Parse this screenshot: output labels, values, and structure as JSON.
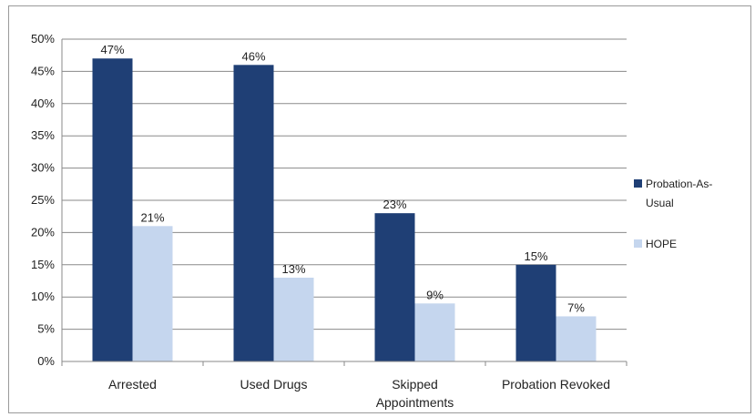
{
  "chart_data": {
    "type": "bar",
    "title": "",
    "xlabel": "",
    "ylabel": "",
    "categories": [
      "Arrested",
      "Used Drugs",
      "Skipped Appointments",
      "Probation Revoked"
    ],
    "category_lines": [
      [
        "Arrested"
      ],
      [
        "Used Drugs"
      ],
      [
        "Skipped",
        "Appointments"
      ],
      [
        "Probation Revoked"
      ]
    ],
    "series": [
      {
        "name": "Probation-As-Usual",
        "name_lines": [
          "Probation-As-",
          "Usual"
        ],
        "values": [
          47,
          46,
          23,
          15
        ],
        "labels": [
          "47%",
          "46%",
          "23%",
          "15%"
        ],
        "color": "#1f3f75"
      },
      {
        "name": "HOPE",
        "name_lines": [
          "HOPE"
        ],
        "values": [
          21,
          13,
          9,
          7
        ],
        "labels": [
          "21%",
          "13%",
          "9%",
          "7%"
        ],
        "color": "#c5d6ee"
      }
    ],
    "ylim": [
      0,
      50
    ],
    "yticks": [
      0,
      5,
      10,
      15,
      20,
      25,
      30,
      35,
      40,
      45,
      50
    ],
    "ytick_labels": [
      "0%",
      "5%",
      "10%",
      "15%",
      "20%",
      "25%",
      "30%",
      "35%",
      "40%",
      "45%",
      "50%"
    ],
    "grid": true,
    "legend_position": "right"
  }
}
